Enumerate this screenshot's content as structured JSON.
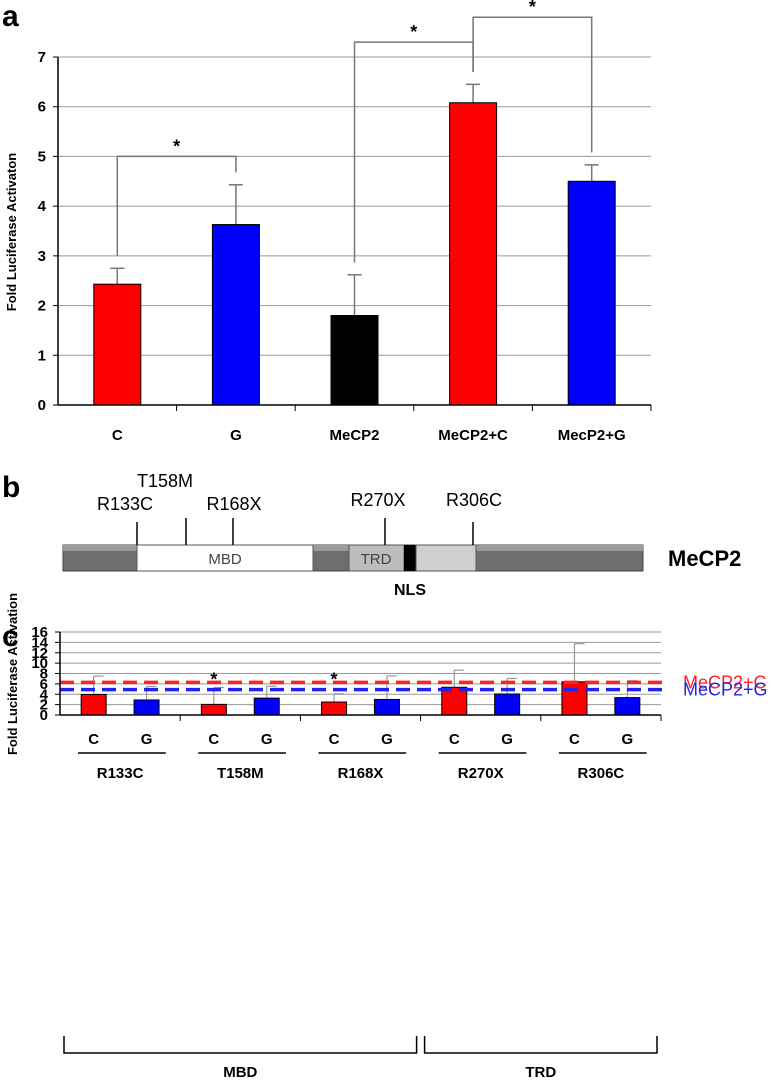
{
  "panels": {
    "a": "a",
    "b": "b",
    "c": "c"
  },
  "colors": {
    "red": "#ff0000",
    "blue": "#0000ff",
    "black": "#000000",
    "ref_red": "#ff2222",
    "ref_blue": "#2222ee"
  },
  "chart_data": [
    {
      "panel": "a",
      "type": "bar",
      "ylabel": "Fold Luciferase Activaton",
      "ylim": [
        0,
        7
      ],
      "yticks": [
        0,
        1,
        2,
        3,
        4,
        5,
        6,
        7
      ],
      "grid": true,
      "categories": [
        "C",
        "G",
        "MeCP2",
        "MeCP2+C",
        "MecP2+G"
      ],
      "values": [
        2.43,
        3.63,
        1.8,
        6.08,
        4.5
      ],
      "errors": [
        0.32,
        0.8,
        0.82,
        0.37,
        0.33
      ],
      "bar_colors": [
        "red",
        "blue",
        "black",
        "red",
        "blue"
      ],
      "significance": [
        {
          "from": 0,
          "to": 1,
          "label": "*",
          "level": 5.0
        },
        {
          "from": 2,
          "to": 3,
          "label": "*",
          "level": 7.3
        },
        {
          "from": 3,
          "to": 4,
          "label": "*",
          "level": 7.8
        }
      ]
    },
    {
      "panel": "c",
      "type": "bar",
      "ylabel": "Fold Luciferase Activation",
      "ylim": [
        0,
        16
      ],
      "yticks": [
        0,
        2,
        4,
        6,
        8,
        10,
        12,
        14,
        16
      ],
      "grid": true,
      "groups": [
        "R133C",
        "T158M",
        "R168X",
        "R270X",
        "R306C"
      ],
      "subcategories": [
        "C",
        "G"
      ],
      "series": [
        {
          "key": "C",
          "color": "red",
          "values": [
            3.95,
            2.05,
            2.5,
            5.35,
            6.4
          ],
          "errors": [
            3.55,
            3.25,
            1.6,
            3.3,
            7.35
          ]
        },
        {
          "key": "G",
          "color": "blue",
          "values": [
            2.9,
            3.25,
            3.0,
            4.05,
            3.35
          ],
          "errors": [
            2.6,
            2.3,
            4.55,
            3.0,
            3.25
          ]
        }
      ],
      "significance_marks": [
        {
          "group": 1,
          "label": "*",
          "y": 6.8
        },
        {
          "group": 2,
          "label": "*",
          "y": 6.8
        }
      ],
      "reference_lines": [
        {
          "label": "MeCP2+C",
          "value": 6.3,
          "color": "ref_red"
        },
        {
          "label": "MeCP2+G",
          "value": 4.9,
          "color": "ref_blue"
        }
      ],
      "domains": [
        {
          "label": "MBD",
          "from_group": 0,
          "to_group": 2
        },
        {
          "label": "TRD",
          "from_group": 3,
          "to_group": 4
        }
      ]
    }
  ],
  "diagram_b": {
    "protein_label": "MeCP2",
    "segments": [
      {
        "label": "MBD"
      },
      {
        "label": "TRD"
      }
    ],
    "nls_label": "NLS",
    "mutations": [
      "R133C",
      "T158M",
      "R168X",
      "R270X",
      "R306C"
    ]
  }
}
